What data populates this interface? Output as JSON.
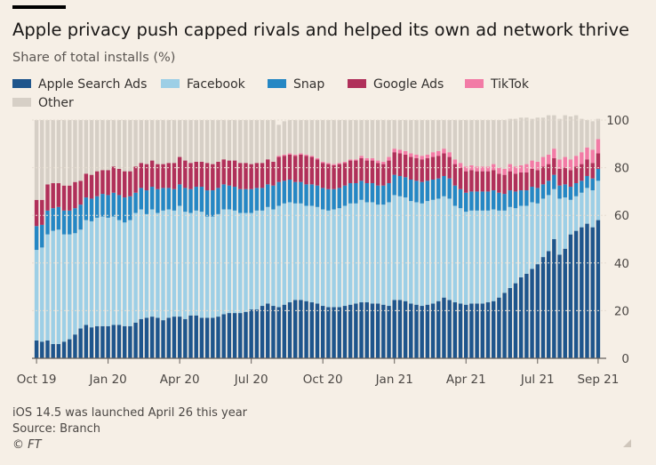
{
  "header": {
    "title": "Apple privacy push capped rivals and helped its own ad network thrive",
    "subtitle": "Share of total installs (%)"
  },
  "legend": [
    {
      "label": "Apple Search Ads",
      "color": "#1e558c"
    },
    {
      "label": "Facebook",
      "color": "#9dcfe6"
    },
    {
      "label": "Snap",
      "color": "#2587c4"
    },
    {
      "label": "Google Ads",
      "color": "#b0305a"
    },
    {
      "label": "TikTok",
      "color": "#f27ba6"
    },
    {
      "label": "Other",
      "color": "#d6cfc6"
    }
  ],
  "footer": {
    "note": "iOS 14.5 was launched April 26 this year",
    "source": "Source: Branch",
    "credit": "© FT"
  },
  "chart_data": {
    "type": "bar",
    "stacked": true,
    "ylabel": "Share of total installs (%)",
    "ylim": [
      0,
      100
    ],
    "yticks": [
      0,
      20,
      40,
      60,
      80,
      100
    ],
    "y_axis_position": "right",
    "grid": true,
    "legend_position": "top",
    "x_tick_labels": [
      "Oct 19",
      "Jan 20",
      "Apr 20",
      "Jul 20",
      "Oct 20",
      "Jan 21",
      "Apr 21",
      "Jul 21",
      "Sep 21"
    ],
    "x_tick_bar_index": [
      0,
      13,
      26,
      39,
      52,
      65,
      78,
      91,
      102
    ],
    "series": [
      {
        "name": "Apple Search Ads",
        "color": "#1e558c",
        "values": [
          7.5,
          7.0,
          7.5,
          6.0,
          6.0,
          7.0,
          8.0,
          10.0,
          12.5,
          14.0,
          13.0,
          13.5,
          13.5,
          13.5,
          14.0,
          14.0,
          13.5,
          13.5,
          15.0,
          16.5,
          17.0,
          17.5,
          17.0,
          16.0,
          17.0,
          17.5,
          17.5,
          16.5,
          18.0,
          18.0,
          17.0,
          17.0,
          17.0,
          17.5,
          18.5,
          19.0,
          19.0,
          19.0,
          19.5,
          20.5,
          20.5,
          22.0,
          23.0,
          22.0,
          21.5,
          22.5,
          23.5,
          24.5,
          24.5,
          24.0,
          23.5,
          23.0,
          22.0,
          21.5,
          21.5,
          21.5,
          22.0,
          22.5,
          23.0,
          23.5,
          23.5,
          23.0,
          23.0,
          22.5,
          22.0,
          24.5,
          24.5,
          24.0,
          23.0,
          22.5,
          22.0,
          22.5,
          23.0,
          24.0,
          25.5,
          24.5,
          23.5,
          23.0,
          22.5,
          23.0,
          23.0,
          23.0,
          23.5,
          24.0,
          25.5,
          27.5,
          29.5,
          31.5,
          34.0,
          35.5,
          37.5,
          39.5,
          42.5,
          45.0,
          50.0,
          43.5,
          46.0,
          52.0,
          53.5,
          55.0,
          56.5,
          55.0,
          58.0
        ]
      },
      {
        "name": "Facebook",
        "color": "#9dcfe6",
        "values": [
          38.0,
          39.5,
          44.5,
          47.5,
          48.0,
          45.0,
          44.0,
          42.5,
          41.5,
          44.0,
          44.5,
          45.5,
          46.0,
          45.5,
          45.5,
          44.0,
          43.5,
          44.5,
          46.0,
          46.0,
          43.5,
          45.0,
          44.0,
          46.0,
          45.5,
          44.5,
          46.5,
          45.0,
          43.0,
          44.0,
          44.5,
          42.5,
          42.5,
          43.0,
          44.0,
          43.5,
          43.0,
          42.0,
          41.5,
          40.5,
          41.5,
          40.0,
          40.5,
          40.5,
          42.5,
          42.5,
          42.0,
          40.5,
          40.5,
          40.0,
          40.5,
          40.5,
          40.5,
          40.5,
          41.0,
          41.5,
          42.0,
          42.5,
          42.0,
          43.0,
          42.0,
          42.5,
          41.5,
          42.0,
          43.5,
          44.0,
          43.5,
          43.5,
          43.0,
          43.0,
          43.0,
          43.5,
          43.5,
          43.0,
          42.5,
          42.5,
          40.5,
          40.0,
          39.0,
          39.0,
          39.0,
          39.0,
          38.5,
          38.5,
          36.5,
          34.5,
          34.0,
          31.5,
          30.0,
          28.5,
          28.0,
          25.5,
          24.5,
          23.5,
          21.0,
          23.5,
          21.5,
          14.5,
          14.5,
          14.5,
          15.0,
          15.5,
          16.5
        ]
      },
      {
        "name": "Snap",
        "color": "#2587c4",
        "values": [
          10.0,
          9.5,
          10.0,
          9.5,
          9.5,
          10.0,
          10.0,
          10.5,
          10.5,
          9.5,
          9.5,
          9.0,
          9.5,
          9.5,
          10.0,
          10.5,
          10.5,
          10.0,
          8.5,
          9.0,
          10.0,
          9.5,
          10.0,
          9.5,
          9.0,
          9.0,
          9.0,
          10.0,
          10.0,
          10.0,
          10.5,
          11.0,
          11.0,
          11.0,
          10.5,
          10.0,
          10.0,
          10.0,
          10.0,
          10.0,
          9.5,
          9.5,
          9.5,
          10.0,
          10.0,
          9.5,
          9.5,
          9.0,
          9.0,
          9.0,
          9.0,
          9.0,
          9.0,
          9.0,
          8.5,
          8.5,
          8.5,
          8.5,
          8.5,
          8.0,
          8.0,
          8.0,
          8.0,
          8.0,
          8.0,
          8.5,
          8.5,
          8.5,
          9.0,
          9.0,
          9.0,
          8.5,
          8.5,
          8.5,
          8.5,
          8.5,
          8.5,
          8.0,
          8.0,
          8.0,
          8.0,
          8.0,
          8.0,
          8.0,
          7.5,
          7.0,
          7.0,
          7.0,
          6.5,
          6.5,
          6.5,
          6.5,
          6.0,
          6.0,
          6.0,
          5.5,
          5.5,
          5.5,
          5.5,
          5.0,
          5.0,
          5.0,
          5.0
        ]
      },
      {
        "name": "Google Ads",
        "color": "#b0305a",
        "values": [
          11.0,
          10.5,
          11.0,
          10.5,
          10.0,
          10.5,
          10.5,
          11.0,
          10.0,
          10.0,
          10.0,
          10.5,
          10.0,
          10.5,
          11.0,
          11.0,
          11.0,
          10.5,
          11.0,
          10.5,
          11.0,
          11.0,
          10.5,
          10.0,
          10.5,
          11.0,
          11.5,
          11.5,
          11.0,
          10.5,
          10.5,
          11.5,
          11.0,
          11.0,
          10.5,
          10.5,
          11.0,
          11.0,
          11.0,
          10.5,
          10.5,
          10.5,
          10.5,
          10.0,
          10.5,
          10.5,
          10.5,
          11.0,
          11.5,
          12.0,
          11.5,
          11.0,
          10.5,
          10.5,
          10.0,
          10.0,
          9.5,
          9.5,
          9.5,
          9.5,
          9.5,
          9.5,
          9.5,
          9.0,
          9.5,
          9.5,
          9.5,
          9.5,
          9.5,
          9.5,
          9.5,
          9.5,
          9.5,
          9.5,
          9.5,
          9.0,
          9.0,
          9.0,
          9.0,
          9.0,
          8.5,
          8.5,
          8.5,
          8.5,
          8.0,
          8.0,
          8.0,
          7.5,
          7.5,
          7.5,
          7.5,
          7.5,
          7.5,
          7.0,
          7.0,
          7.0,
          7.0,
          7.0,
          7.0,
          7.0,
          7.0,
          6.5,
          6.5
        ]
      },
      {
        "name": "TikTok",
        "color": "#f27ba6",
        "values": [
          0.0,
          0.0,
          0.0,
          0.0,
          0.0,
          0.0,
          0.0,
          0.0,
          0.0,
          0.0,
          0.0,
          0.0,
          0.0,
          0.0,
          0.0,
          0.0,
          0.0,
          0.0,
          0.0,
          0.0,
          0.0,
          0.0,
          0.0,
          0.0,
          0.0,
          0.0,
          0.0,
          0.0,
          0.0,
          0.0,
          0.0,
          0.0,
          0.0,
          0.0,
          0.0,
          0.0,
          0.0,
          0.0,
          0.0,
          0.0,
          0.0,
          0.0,
          0.0,
          0.0,
          0.5,
          0.5,
          0.5,
          0.5,
          0.5,
          0.5,
          0.5,
          0.5,
          0.5,
          0.5,
          0.5,
          0.5,
          0.5,
          0.5,
          0.5,
          1.0,
          1.0,
          1.0,
          1.0,
          1.0,
          1.5,
          1.5,
          1.5,
          1.5,
          1.5,
          1.5,
          1.5,
          1.5,
          2.0,
          2.0,
          2.0,
          2.0,
          2.0,
          2.0,
          2.0,
          2.0,
          2.0,
          2.0,
          2.0,
          2.5,
          2.5,
          2.5,
          3.0,
          3.0,
          3.0,
          3.5,
          3.5,
          3.5,
          4.0,
          4.0,
          4.0,
          4.0,
          4.5,
          4.5,
          4.5,
          5.0,
          5.0,
          5.5,
          6.0
        ]
      },
      {
        "name": "Other",
        "color": "#d6cfc6",
        "values": [
          33.5,
          33.5,
          27.0,
          26.5,
          26.5,
          27.5,
          27.5,
          26.0,
          25.5,
          22.5,
          23.0,
          21.5,
          21.0,
          21.0,
          19.5,
          20.5,
          21.5,
          21.5,
          19.5,
          18.0,
          18.5,
          17.0,
          18.5,
          18.5,
          18.0,
          18.0,
          15.5,
          17.0,
          18.0,
          17.5,
          17.5,
          18.0,
          18.5,
          17.5,
          16.5,
          17.0,
          17.0,
          18.0,
          18.0,
          18.5,
          18.0,
          18.0,
          16.5,
          17.5,
          13.0,
          14.0,
          14.0,
          14.5,
          14.0,
          14.5,
          15.0,
          16.0,
          17.5,
          18.0,
          18.5,
          18.0,
          17.5,
          16.5,
          16.5,
          15.0,
          16.0,
          16.0,
          17.0,
          17.5,
          15.5,
          12.0,
          12.5,
          13.0,
          14.0,
          14.5,
          15.0,
          14.5,
          13.5,
          13.0,
          12.0,
          13.5,
          16.5,
          18.0,
          19.5,
          19.0,
          19.5,
          19.5,
          19.5,
          18.5,
          20.0,
          20.5,
          19.0,
          20.0,
          20.0,
          19.5,
          17.5,
          18.5,
          16.5,
          16.5,
          14.0,
          17.0,
          17.5,
          18.0,
          17.0,
          14.0,
          11.5,
          12.0,
          8.5
        ]
      }
    ]
  }
}
